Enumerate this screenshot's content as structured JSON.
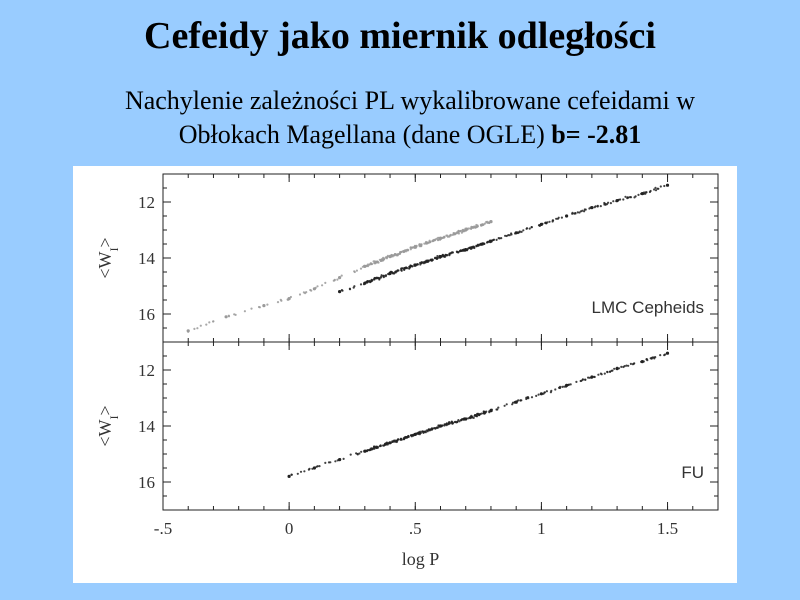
{
  "slide": {
    "title": "Cefeidy jako miernik odległości",
    "subtitle_line1": "Nachylenie zależności PL wykalibrowane cefeidami w",
    "subtitle_line2": "Obłokach Magellana (dane OGLE)",
    "subtitle_bold": "b= -2.81"
  },
  "colors": {
    "background": "#99ccff",
    "panel": "#ffffff",
    "ink": "#222222",
    "fo_points": "#9a9a9a"
  },
  "chart_data": [
    {
      "type": "scatter",
      "panel_label": "LMC Cepheids",
      "xlabel": "log P",
      "ylabel": "<W_I>",
      "xlim": [
        -0.5,
        1.7
      ],
      "ylim": [
        17.0,
        11.0
      ],
      "y_inverted": true,
      "x_ticks": [
        -0.5,
        0,
        0.5,
        1,
        1.5
      ],
      "y_ticks": [
        12,
        14,
        16
      ],
      "series": [
        {
          "points": [
            [
              -0.4,
              16.6
            ],
            [
              -0.25,
              16.1
            ],
            [
              -0.1,
              15.7
            ],
            [
              0.0,
              15.45
            ],
            [
              0.1,
              15.1
            ],
            [
              0.2,
              14.7
            ],
            [
              0.3,
              14.3
            ],
            [
              0.4,
              13.95
            ],
            [
              0.5,
              13.6
            ],
            [
              0.6,
              13.3
            ],
            [
              0.7,
              13.0
            ],
            [
              0.8,
              12.7
            ]
          ]
        },
        {
          "points": [
            [
              0.2,
              15.2
            ],
            [
              0.3,
              14.9
            ],
            [
              0.4,
              14.55
            ],
            [
              0.5,
              14.25
            ],
            [
              0.6,
              13.95
            ],
            [
              0.7,
              13.7
            ],
            [
              0.8,
              13.4
            ],
            [
              0.9,
              13.1
            ],
            [
              1.0,
              12.8
            ],
            [
              1.1,
              12.5
            ],
            [
              1.2,
              12.2
            ],
            [
              1.3,
              11.95
            ],
            [
              1.4,
              11.7
            ],
            [
              1.5,
              11.4
            ]
          ]
        }
      ]
    },
    {
      "type": "scatter",
      "panel_label": "FU",
      "xlabel": "log P",
      "ylabel": "<W_I>",
      "xlim": [
        -0.5,
        1.7
      ],
      "ylim": [
        17.0,
        11.0
      ],
      "y_inverted": true,
      "x_ticks": [
        -0.5,
        0,
        0.5,
        1,
        1.5
      ],
      "y_ticks": [
        12,
        14,
        16
      ],
      "series": [
        {
          "points": [
            [
              0.0,
              15.8
            ],
            [
              0.1,
              15.5
            ],
            [
              0.2,
              15.2
            ],
            [
              0.3,
              14.9
            ],
            [
              0.4,
              14.6
            ],
            [
              0.5,
              14.3
            ],
            [
              0.6,
              14.0
            ],
            [
              0.7,
              13.75
            ],
            [
              0.8,
              13.45
            ],
            [
              0.9,
              13.15
            ],
            [
              1.0,
              12.85
            ],
            [
              1.1,
              12.55
            ],
            [
              1.2,
              12.25
            ],
            [
              1.3,
              11.95
            ],
            [
              1.4,
              11.7
            ],
            [
              1.5,
              11.4
            ]
          ]
        }
      ]
    }
  ]
}
